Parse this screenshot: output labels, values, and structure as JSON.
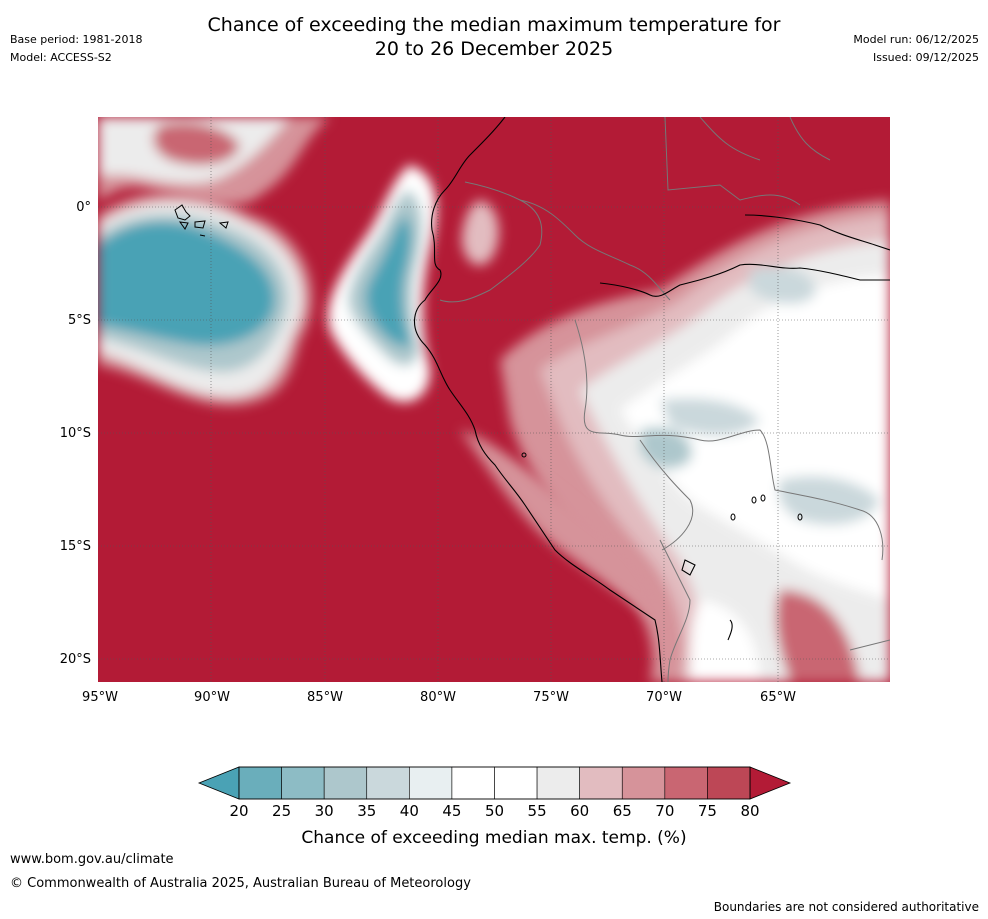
{
  "header": {
    "base_period": "Base period: 1981-2018",
    "model": "Model: ACCESS-S2",
    "title_line1": "Chance of exceeding the median maximum temperature for",
    "title_line2": "20 to 26 December 2025",
    "model_run": "Model run: 06/12/2025",
    "issued": "Issued: 09/12/2025"
  },
  "map": {
    "lat_labels": [
      "0°",
      "5°S",
      "10°S",
      "15°S",
      "20°S"
    ],
    "lon_labels": [
      "95°W",
      "90°W",
      "85°W",
      "80°W",
      "75°W",
      "70°W",
      "65°W"
    ]
  },
  "colorbar": {
    "ticks": [
      "20",
      "25",
      "30",
      "35",
      "40",
      "45",
      "50",
      "55",
      "60",
      "65",
      "70",
      "75",
      "80"
    ],
    "colors": [
      "#4aa2b5",
      "#6aaebb",
      "#8dbcc5",
      "#adc7cc",
      "#cad8dc",
      "#e8eff1",
      "#ffffff",
      "#ffffff",
      "#ececec",
      "#e2bcc0",
      "#d6939a",
      "#c96672",
      "#bd4756",
      "#b31b36"
    ],
    "label": "Chance of exceeding median max. temp. (%)"
  },
  "footer": {
    "url": "www.bom.gov.au/climate",
    "copyright": "© Commonwealth of Australia 2025, Australian Bureau of Meteorology",
    "disclaimer": "Boundaries are not considered authoritative"
  }
}
